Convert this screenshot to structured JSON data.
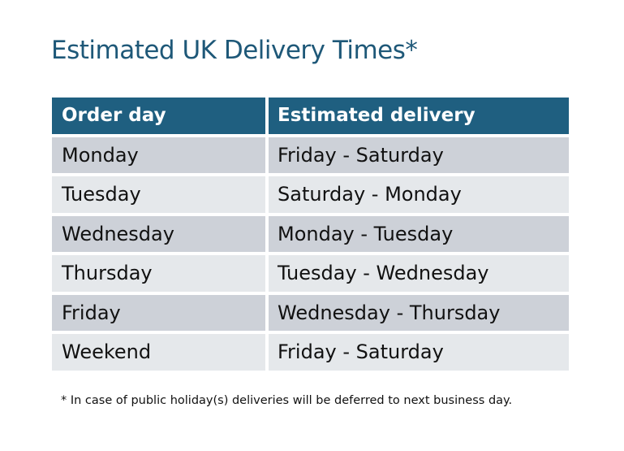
{
  "title": "Estimated UK Delivery Times*",
  "table": {
    "headers": [
      "Order day",
      "Estimated delivery"
    ],
    "rows": [
      [
        "Monday",
        "Friday - Saturday"
      ],
      [
        "Tuesday",
        "Saturday - Monday"
      ],
      [
        "Wednesday",
        "Monday - Tuesday"
      ],
      [
        "Thursday",
        "Tuesday - Wednesday"
      ],
      [
        "Friday",
        "Wednesday - Thursday"
      ],
      [
        "Weekend",
        "Friday - Saturday"
      ]
    ]
  },
  "footnote": "* In case of public holiday(s) deliveries will be deferred to next business day.",
  "colors": {
    "header": "#1f5f80",
    "title": "#1e5878",
    "row_odd": "#cdd1d8",
    "row_even": "#e5e8eb"
  }
}
